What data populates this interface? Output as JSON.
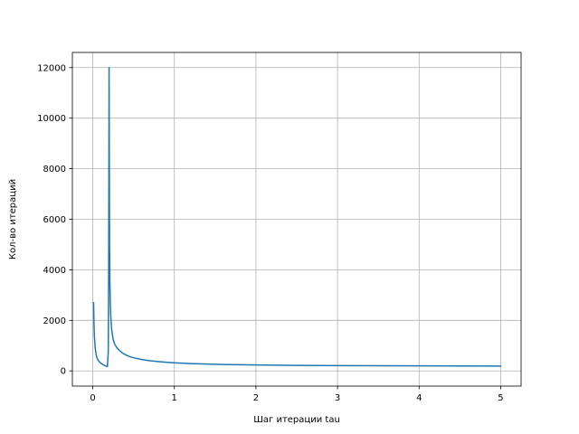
{
  "chart_data": {
    "type": "line",
    "title": "",
    "xlabel": "Шаг итерации tau",
    "ylabel": "Кол-во итераций",
    "xlim": [
      -0.25,
      5.25
    ],
    "ylim": [
      -600,
      12600
    ],
    "x_ticks": [
      0,
      1,
      2,
      3,
      4,
      5
    ],
    "x_tick_labels": [
      "0",
      "1",
      "2",
      "3",
      "4",
      "5"
    ],
    "y_ticks": [
      0,
      2000,
      4000,
      6000,
      8000,
      10000,
      12000
    ],
    "y_tick_labels": [
      "0",
      "2000",
      "4000",
      "6000",
      "8000",
      "10000",
      "12000"
    ],
    "grid": true,
    "legend": "none",
    "line_color": "#1f77b4",
    "series": [
      {
        "x": [
          0.01,
          0.015,
          0.02,
          0.03,
          0.04,
          0.05,
          0.07,
          0.09,
          0.11,
          0.13,
          0.15,
          0.17,
          0.18,
          0.19,
          0.195,
          0.2,
          0.203,
          0.206,
          0.21,
          0.215,
          0.22,
          0.23,
          0.24,
          0.25,
          0.27,
          0.3,
          0.33,
          0.36,
          0.4,
          0.45,
          0.5,
          0.6,
          0.7,
          0.8,
          0.9,
          1.0,
          1.2,
          1.4,
          1.6,
          1.8,
          2.0,
          2.5,
          3.0,
          3.5,
          4.0,
          4.5,
          5.0
        ],
        "y": [
          2700,
          1850,
          1350,
          900,
          680,
          530,
          400,
          330,
          280,
          240,
          210,
          180,
          170,
          800,
          4000,
          12000,
          8000,
          5000,
          3500,
          2700,
          2200,
          1700,
          1450,
          1250,
          1050,
          900,
          800,
          720,
          640,
          570,
          520,
          450,
          400,
          370,
          345,
          320,
          290,
          270,
          255,
          245,
          235,
          220,
          210,
          205,
          200,
          195,
          190
        ]
      }
    ]
  }
}
